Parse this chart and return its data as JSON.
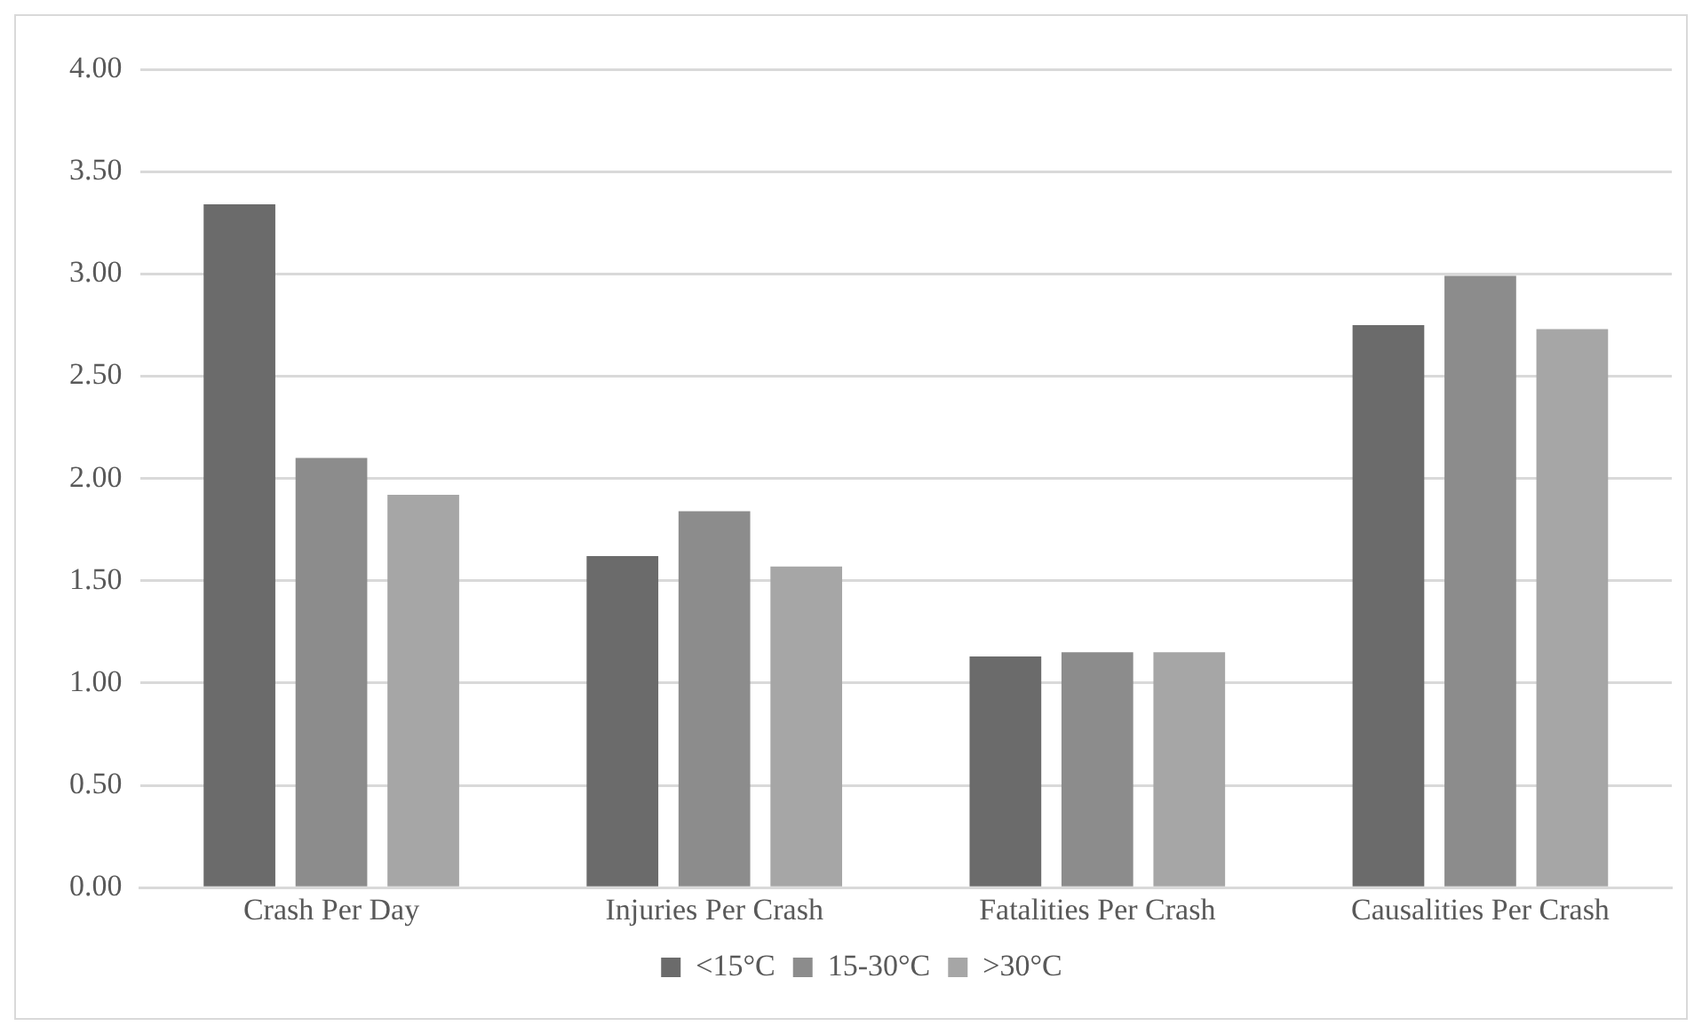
{
  "chart_data": {
    "type": "bar",
    "categories": [
      "Crash Per Day",
      "Injuries Per Crash",
      "Fatalities Per Crash",
      "Causalities Per Crash"
    ],
    "series": [
      {
        "name": "<15°C",
        "color": "#6b6b6b",
        "values": [
          3.34,
          1.62,
          1.13,
          2.75
        ]
      },
      {
        "name": "15-30°C",
        "color": "#8c8c8c",
        "values": [
          2.1,
          1.84,
          1.15,
          2.99
        ]
      },
      {
        "name": ">30°C",
        "color": "#a6a6a6",
        "values": [
          1.92,
          1.57,
          1.15,
          2.73
        ]
      }
    ],
    "ylim": [
      0,
      4
    ],
    "yticks": [
      {
        "value": 0,
        "label": "0.00"
      },
      {
        "value": 0.5,
        "label": "0.50"
      },
      {
        "value": 1,
        "label": "1.00"
      },
      {
        "value": 1.5,
        "label": "1.50"
      },
      {
        "value": 2,
        "label": "2.00"
      },
      {
        "value": 2.5,
        "label": "2.50"
      },
      {
        "value": 3,
        "label": "3.00"
      },
      {
        "value": 3.5,
        "label": "3.50"
      },
      {
        "value": 4,
        "label": "4.00"
      }
    ],
    "grid": "y",
    "legend": "bottom"
  }
}
